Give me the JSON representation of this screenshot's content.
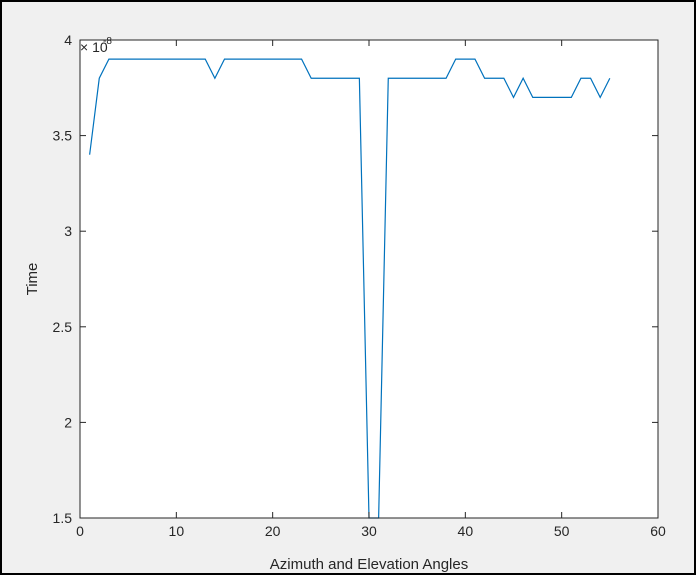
{
  "chart_data": {
    "type": "line",
    "title": "",
    "xlabel": "Azimuth and Elevation Angles",
    "ylabel": "Time",
    "xlim": [
      0,
      60
    ],
    "ylim": [
      1.5e-08,
      4e-08
    ],
    "x_ticks": [
      0,
      10,
      20,
      30,
      40,
      50,
      60
    ],
    "y_ticks": [
      1.5,
      2,
      2.5,
      3,
      3.5,
      4
    ],
    "y_tick_labels": [
      "1.5",
      "2",
      "2.5",
      "3",
      "3.5",
      "4"
    ],
    "x_tick_labels": [
      "0",
      "10",
      "20",
      "30",
      "40",
      "50",
      "60"
    ],
    "y_exponent_base": "× 10",
    "y_exponent_power": "-8",
    "grid": false,
    "legend": "none",
    "series": [
      {
        "color": "#0072BD",
        "x": [
          1,
          2,
          3,
          4,
          5,
          6,
          7,
          8,
          9,
          10,
          11,
          12,
          13,
          14,
          15,
          16,
          17,
          18,
          19,
          20,
          21,
          22,
          23,
          24,
          25,
          26,
          27,
          28,
          29,
          30,
          31,
          32,
          33,
          34,
          35,
          36,
          37,
          38,
          39,
          40,
          41,
          42,
          43,
          44,
          45,
          46,
          47,
          48,
          49,
          50,
          51,
          52,
          53,
          54,
          55
        ],
        "values": [
          3.4e-08,
          3.8e-08,
          3.9e-08,
          3.9e-08,
          3.9e-08,
          3.9e-08,
          3.9e-08,
          3.9e-08,
          3.9e-08,
          3.9e-08,
          3.9e-08,
          3.9e-08,
          3.9e-08,
          3.8e-08,
          3.9e-08,
          3.9e-08,
          3.9e-08,
          3.9e-08,
          3.9e-08,
          3.9e-08,
          3.9e-08,
          3.9e-08,
          3.9e-08,
          3.8e-08,
          3.8e-08,
          3.8e-08,
          3.8e-08,
          3.8e-08,
          3.8e-08,
          1.5e-08,
          1.5e-08,
          3.8e-08,
          3.8e-08,
          3.8e-08,
          3.8e-08,
          3.8e-08,
          3.8e-08,
          3.8e-08,
          3.9e-08,
          3.9e-08,
          3.9e-08,
          3.8e-08,
          3.8e-08,
          3.8e-08,
          3.7e-08,
          3.8e-08,
          3.7e-08,
          3.7e-08,
          3.7e-08,
          3.7e-08,
          3.7e-08,
          3.8e-08,
          3.8e-08,
          3.7e-08,
          3.8e-08
        ]
      }
    ]
  }
}
